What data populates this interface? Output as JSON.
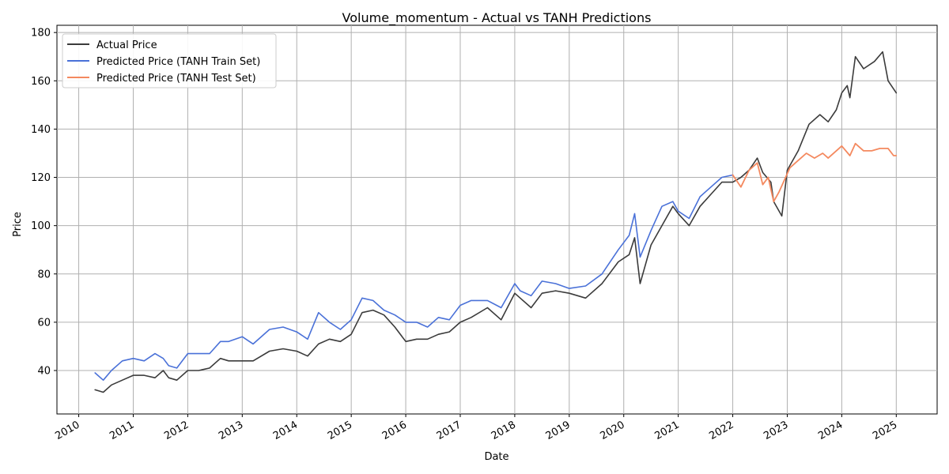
{
  "chart_data": {
    "type": "line",
    "title": "Volume_momentum - Actual vs TANH Predictions",
    "xlabel": "Date",
    "ylabel": "Price",
    "xlim": [
      2009.6,
      2025.75
    ],
    "ylim": [
      22,
      183
    ],
    "grid": true,
    "legend_position": "top-left",
    "x_ticks": [
      "2010",
      "2011",
      "2012",
      "2013",
      "2014",
      "2015",
      "2016",
      "2017",
      "2018",
      "2019",
      "2020",
      "2021",
      "2022",
      "2023",
      "2024",
      "2025"
    ],
    "y_ticks": [
      40,
      60,
      80,
      100,
      120,
      140,
      160,
      180
    ],
    "series": [
      {
        "name": "Actual Price",
        "color": "#3b3b3b",
        "x": [
          2010.3,
          2010.45,
          2010.6,
          2010.8,
          2011.0,
          2011.2,
          2011.4,
          2011.55,
          2011.65,
          2011.8,
          2012.0,
          2012.2,
          2012.4,
          2012.6,
          2012.75,
          2013.0,
          2013.2,
          2013.5,
          2013.75,
          2014.0,
          2014.2,
          2014.4,
          2014.6,
          2014.8,
          2015.0,
          2015.2,
          2015.4,
          2015.6,
          2015.8,
          2016.0,
          2016.2,
          2016.4,
          2016.6,
          2016.8,
          2017.0,
          2017.2,
          2017.5,
          2017.75,
          2018.0,
          2018.1,
          2018.3,
          2018.5,
          2018.75,
          2019.0,
          2019.3,
          2019.6,
          2019.9,
          2020.1,
          2020.2,
          2020.3,
          2020.5,
          2020.7,
          2020.9,
          2021.0,
          2021.2,
          2021.4,
          2021.6,
          2021.8,
          2022.0,
          2022.15,
          2022.3,
          2022.45,
          2022.55,
          2022.7,
          2022.75,
          2022.9,
          2023.0,
          2023.2,
          2023.4,
          2023.6,
          2023.75,
          2023.9,
          2024.0,
          2024.1,
          2024.15,
          2024.25,
          2024.4,
          2024.6,
          2024.75,
          2024.85,
          2025.0
        ],
        "values": [
          32,
          31,
          34,
          36,
          38,
          38,
          37,
          40,
          37,
          36,
          40,
          40,
          41,
          45,
          44,
          44,
          44,
          48,
          49,
          48,
          46,
          51,
          53,
          52,
          55,
          64,
          65,
          63,
          58,
          52,
          53,
          53,
          55,
          56,
          60,
          62,
          66,
          61,
          72,
          70,
          66,
          72,
          73,
          72,
          70,
          76,
          85,
          88,
          95,
          76,
          92,
          100,
          108,
          105,
          100,
          108,
          113,
          118,
          118,
          120,
          123,
          128,
          122,
          118,
          110,
          104,
          123,
          131,
          142,
          146,
          143,
          148,
          155,
          158,
          153,
          170,
          165,
          168,
          172,
          160,
          155
        ]
      },
      {
        "name": "Predicted Price (TANH Train Set)",
        "color": "#4a71d8",
        "x": [
          2010.3,
          2010.45,
          2010.6,
          2010.8,
          2011.0,
          2011.2,
          2011.4,
          2011.55,
          2011.65,
          2011.8,
          2012.0,
          2012.2,
          2012.4,
          2012.6,
          2012.75,
          2013.0,
          2013.2,
          2013.5,
          2013.75,
          2014.0,
          2014.2,
          2014.4,
          2014.6,
          2014.8,
          2015.0,
          2015.2,
          2015.4,
          2015.6,
          2015.8,
          2016.0,
          2016.2,
          2016.4,
          2016.6,
          2016.8,
          2017.0,
          2017.2,
          2017.5,
          2017.75,
          2018.0,
          2018.1,
          2018.3,
          2018.5,
          2018.75,
          2019.0,
          2019.3,
          2019.6,
          2019.9,
          2020.1,
          2020.2,
          2020.3,
          2020.5,
          2020.7,
          2020.9,
          2021.0,
          2021.2,
          2021.4,
          2021.6,
          2021.8,
          2022.0
        ],
        "values": [
          39,
          36,
          40,
          44,
          45,
          44,
          47,
          45,
          42,
          41,
          47,
          47,
          47,
          52,
          52,
          54,
          51,
          57,
          58,
          56,
          53,
          64,
          60,
          57,
          61,
          70,
          69,
          65,
          63,
          60,
          60,
          58,
          62,
          61,
          67,
          69,
          69,
          66,
          76,
          73,
          71,
          77,
          76,
          74,
          75,
          80,
          90,
          96,
          105,
          87,
          98,
          108,
          110,
          106,
          103,
          112,
          116,
          120,
          121
        ]
      },
      {
        "name": "Predicted Price (TANH Test Set)",
        "color": "#f4895f",
        "x": [
          2022.0,
          2022.15,
          2022.3,
          2022.45,
          2022.55,
          2022.65,
          2022.75,
          2022.85,
          2022.95,
          2023.05,
          2023.2,
          2023.35,
          2023.5,
          2023.65,
          2023.75,
          2023.9,
          2024.0,
          2024.15,
          2024.25,
          2024.4,
          2024.55,
          2024.7,
          2024.85,
          2024.95,
          2025.0
        ],
        "values": [
          121,
          116,
          123,
          126,
          117,
          120,
          110,
          114,
          119,
          124,
          127,
          130,
          128,
          130,
          128,
          131,
          133,
          129,
          134,
          131,
          131,
          132,
          132,
          129,
          129
        ]
      }
    ]
  }
}
